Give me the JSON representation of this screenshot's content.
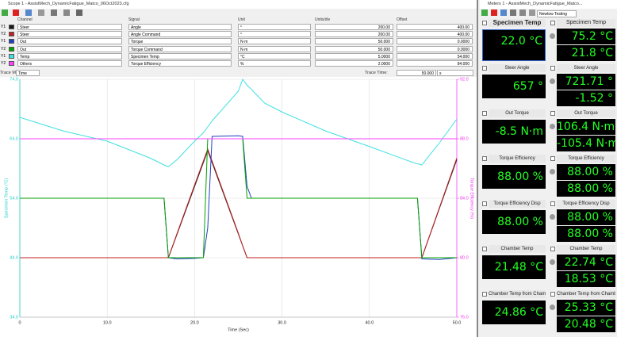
{
  "scope": {
    "title": "Scope 1 - AssistMech_DynamicFatigue_Matco_06Oct2023.cfg",
    "columns": [
      "Channel",
      "Signal",
      "Unit",
      "Units/div",
      "Offset"
    ],
    "channels": [
      [
        "Y1",
        "Steer",
        "Angle",
        "°",
        "200.00",
        "400.00"
      ],
      [
        "Y2",
        "Steer",
        "Angle Command",
        "°",
        "200.00",
        "400.00"
      ],
      [
        "Y1",
        "Out",
        "Torque",
        "N·m",
        "50.000",
        "0.0000"
      ],
      [
        "Y2",
        "Out",
        "Torque Command",
        "N·m",
        "50.000",
        "0.0000"
      ],
      [
        "Y1",
        "Temp",
        "Specimen Temp",
        "°C",
        "5.0000",
        "54.000"
      ],
      [
        "Y2",
        "Others",
        "Torque Efficiency",
        "%",
        "2.0000",
        "84.000"
      ]
    ],
    "trace_mode_label": "Trace Mode:",
    "trace_mode": "Time",
    "trace_time_label": "Trace Time:",
    "trace_time": "50.000",
    "trace_time_unit": "s"
  },
  "chart_data": {
    "type": "line",
    "x": [
      0,
      5,
      10,
      15,
      16.5,
      17,
      18,
      20,
      21,
      21.5,
      22,
      25,
      25.5,
      26,
      26.5,
      28,
      30,
      35,
      40,
      45,
      45.5,
      46,
      48,
      50
    ],
    "series": [
      {
        "color": "#1a1a1a",
        "values": [
          0,
          0,
          0,
          0,
          0,
          0,
          160,
          480,
          640,
          720,
          640,
          160,
          80,
          0,
          0,
          0,
          0,
          0,
          0,
          0,
          0,
          0,
          330,
          660
        ]
      },
      {
        "color": "#c02020",
        "values": [
          0,
          0,
          0,
          0,
          0,
          0,
          165,
          490,
          650,
          730,
          650,
          165,
          80,
          0,
          0,
          0,
          0,
          0,
          0,
          0,
          0,
          0,
          335,
          670
        ]
      },
      {
        "color": "#2040c0",
        "values": [
          0,
          0,
          0,
          0,
          0,
          -100,
          -102,
          -101,
          -100,
          -50,
          104,
          105,
          104,
          20,
          0,
          0,
          0,
          0,
          0,
          0,
          0,
          -102,
          -103,
          -100
        ]
      },
      {
        "color": "#00a000",
        "values": [
          0,
          0,
          0,
          0,
          0,
          -100,
          -100,
          -100,
          -100,
          100,
          100,
          100,
          100,
          0,
          0,
          0,
          0,
          0,
          0,
          0,
          0,
          -100,
          -100,
          -100
        ]
      },
      {
        "color": "#40e0e0",
        "values": [
          67.6,
          65.3,
          63.6,
          60.7,
          59.6,
          59.3,
          60.5,
          63.6,
          65,
          66,
          67,
          72,
          74,
          73,
          72.3,
          70,
          68.5,
          65.3,
          62.7,
          60,
          59.8,
          59.6,
          63.3,
          67.3
        ]
      },
      {
        "color": "#ff40ff",
        "axis": "y2",
        "values": [
          88,
          88,
          88,
          88,
          88,
          88,
          88,
          88,
          88,
          88,
          88,
          88,
          88,
          88,
          88,
          88,
          88,
          88,
          88,
          88,
          88,
          88,
          88,
          88
        ]
      }
    ],
    "xlim": [
      0,
      50
    ],
    "xticks": [
      0,
      {
        "value": 10,
        "label": "10.0"
      },
      {
        "value": 20,
        "label": "20.0"
      },
      {
        "value": 30,
        "label": "30.0"
      },
      {
        "value": 40,
        "label": "40.0"
      },
      {
        "value": 50,
        "label": "50.0"
      }
    ],
    "ylim": [
      34,
      74
    ],
    "yticks": [
      {
        "value": 34,
        "label": "34.0"
      },
      {
        "value": 44,
        "label": "44.0"
      },
      {
        "value": 54,
        "label": "54.0"
      },
      {
        "value": 64,
        "label": "64.0"
      },
      {
        "value": 74,
        "label": "74.0"
      }
    ],
    "y2lim": [
      76,
      92
    ],
    "y2ticks": [
      {
        "value": 76,
        "label": "76.0"
      },
      {
        "value": 80,
        "label": "80.0"
      },
      {
        "value": 84,
        "label": "84.0"
      },
      {
        "value": 88,
        "label": "88.0"
      },
      {
        "value": 92,
        "label": "92.0"
      }
    ],
    "xlabel": "Time (Sec)",
    "ylabel": "Specimen Temp (°C)",
    "y2label": "Torque Efficiency (%)",
    "grid": true
  },
  "meters": {
    "title": "Meters 1 - AssistMech_DynamicFatigue_Matco...",
    "profile": "Newtow Testing",
    "rows": [
      {
        "name": "Specimen Temp",
        "current": "22.0 °C",
        "max": "75.2 °C",
        "min": "21.8 °C"
      },
      {
        "name": "Steer Angle",
        "current": "657 °",
        "max": "721.71 °",
        "min": "-1.52 °"
      },
      {
        "name": "Out Torque",
        "current": "-8.5 N·m",
        "max": "106.4 N·m",
        "min": "-105.4 N·m"
      },
      {
        "name": "Torque Efficiency",
        "current": "88.00 %",
        "max": "88.00 %",
        "min": "88.00 %"
      },
      {
        "name": "Torque Efficiency Disp",
        "current": "88.00 %",
        "max": "88.00 %",
        "min": "88.00 %"
      },
      {
        "name": "Chamber Temp",
        "current": "21.48 °C",
        "max": "22.74 °C",
        "min": "18.53 °C"
      },
      {
        "name": "Chamber Temp from Chamber",
        "current": "24.86 °C",
        "max": "25.33 °C",
        "min": "20.48 °C"
      }
    ]
  }
}
